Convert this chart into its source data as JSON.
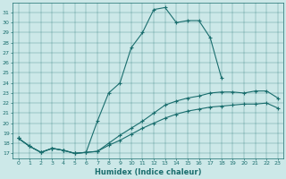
{
  "xlabel": "Humidex (Indice chaleur)",
  "bg_color": "#cce8e8",
  "line_color": "#1a6e6e",
  "xlim": [
    -0.5,
    23.5
  ],
  "ylim": [
    16.5,
    32.0
  ],
  "xticks": [
    0,
    1,
    2,
    3,
    4,
    5,
    6,
    7,
    8,
    9,
    10,
    11,
    12,
    13,
    14,
    15,
    16,
    17,
    18,
    19,
    20,
    21,
    22,
    23
  ],
  "yticks": [
    17,
    18,
    19,
    20,
    21,
    22,
    23,
    24,
    25,
    26,
    27,
    28,
    29,
    30,
    31
  ],
  "line1_x": [
    0,
    1,
    2,
    3,
    4,
    5,
    6,
    7,
    8,
    9,
    10,
    11,
    12,
    13,
    14,
    15,
    16,
    17,
    18
  ],
  "line1_y": [
    18.5,
    17.7,
    17.1,
    17.5,
    17.3,
    17.0,
    17.1,
    20.2,
    23.0,
    24.0,
    27.5,
    29.0,
    31.3,
    31.5,
    30.0,
    30.2,
    30.2,
    28.5,
    24.5
  ],
  "line2_x": [
    0,
    1,
    2,
    3,
    4,
    5,
    6,
    7,
    8,
    9,
    10,
    11,
    12,
    13,
    14,
    15,
    16,
    17,
    18,
    19,
    20,
    21,
    22,
    23
  ],
  "line2_y": [
    18.5,
    17.7,
    17.1,
    17.5,
    17.3,
    17.0,
    17.1,
    17.2,
    18.0,
    18.8,
    19.5,
    20.2,
    21.0,
    21.8,
    22.2,
    22.5,
    22.7,
    23.0,
    23.1,
    23.1,
    23.0,
    23.2,
    23.2,
    22.5
  ],
  "line3_x": [
    0,
    1,
    2,
    3,
    4,
    5,
    6,
    7,
    8,
    9,
    10,
    11,
    12,
    13,
    14,
    15,
    16,
    17,
    18,
    19,
    20,
    21,
    22,
    23
  ],
  "line3_y": [
    18.5,
    17.7,
    17.1,
    17.5,
    17.3,
    17.0,
    17.1,
    17.2,
    17.8,
    18.3,
    18.9,
    19.5,
    20.0,
    20.5,
    20.9,
    21.2,
    21.4,
    21.6,
    21.7,
    21.8,
    21.9,
    21.9,
    22.0,
    21.5
  ]
}
